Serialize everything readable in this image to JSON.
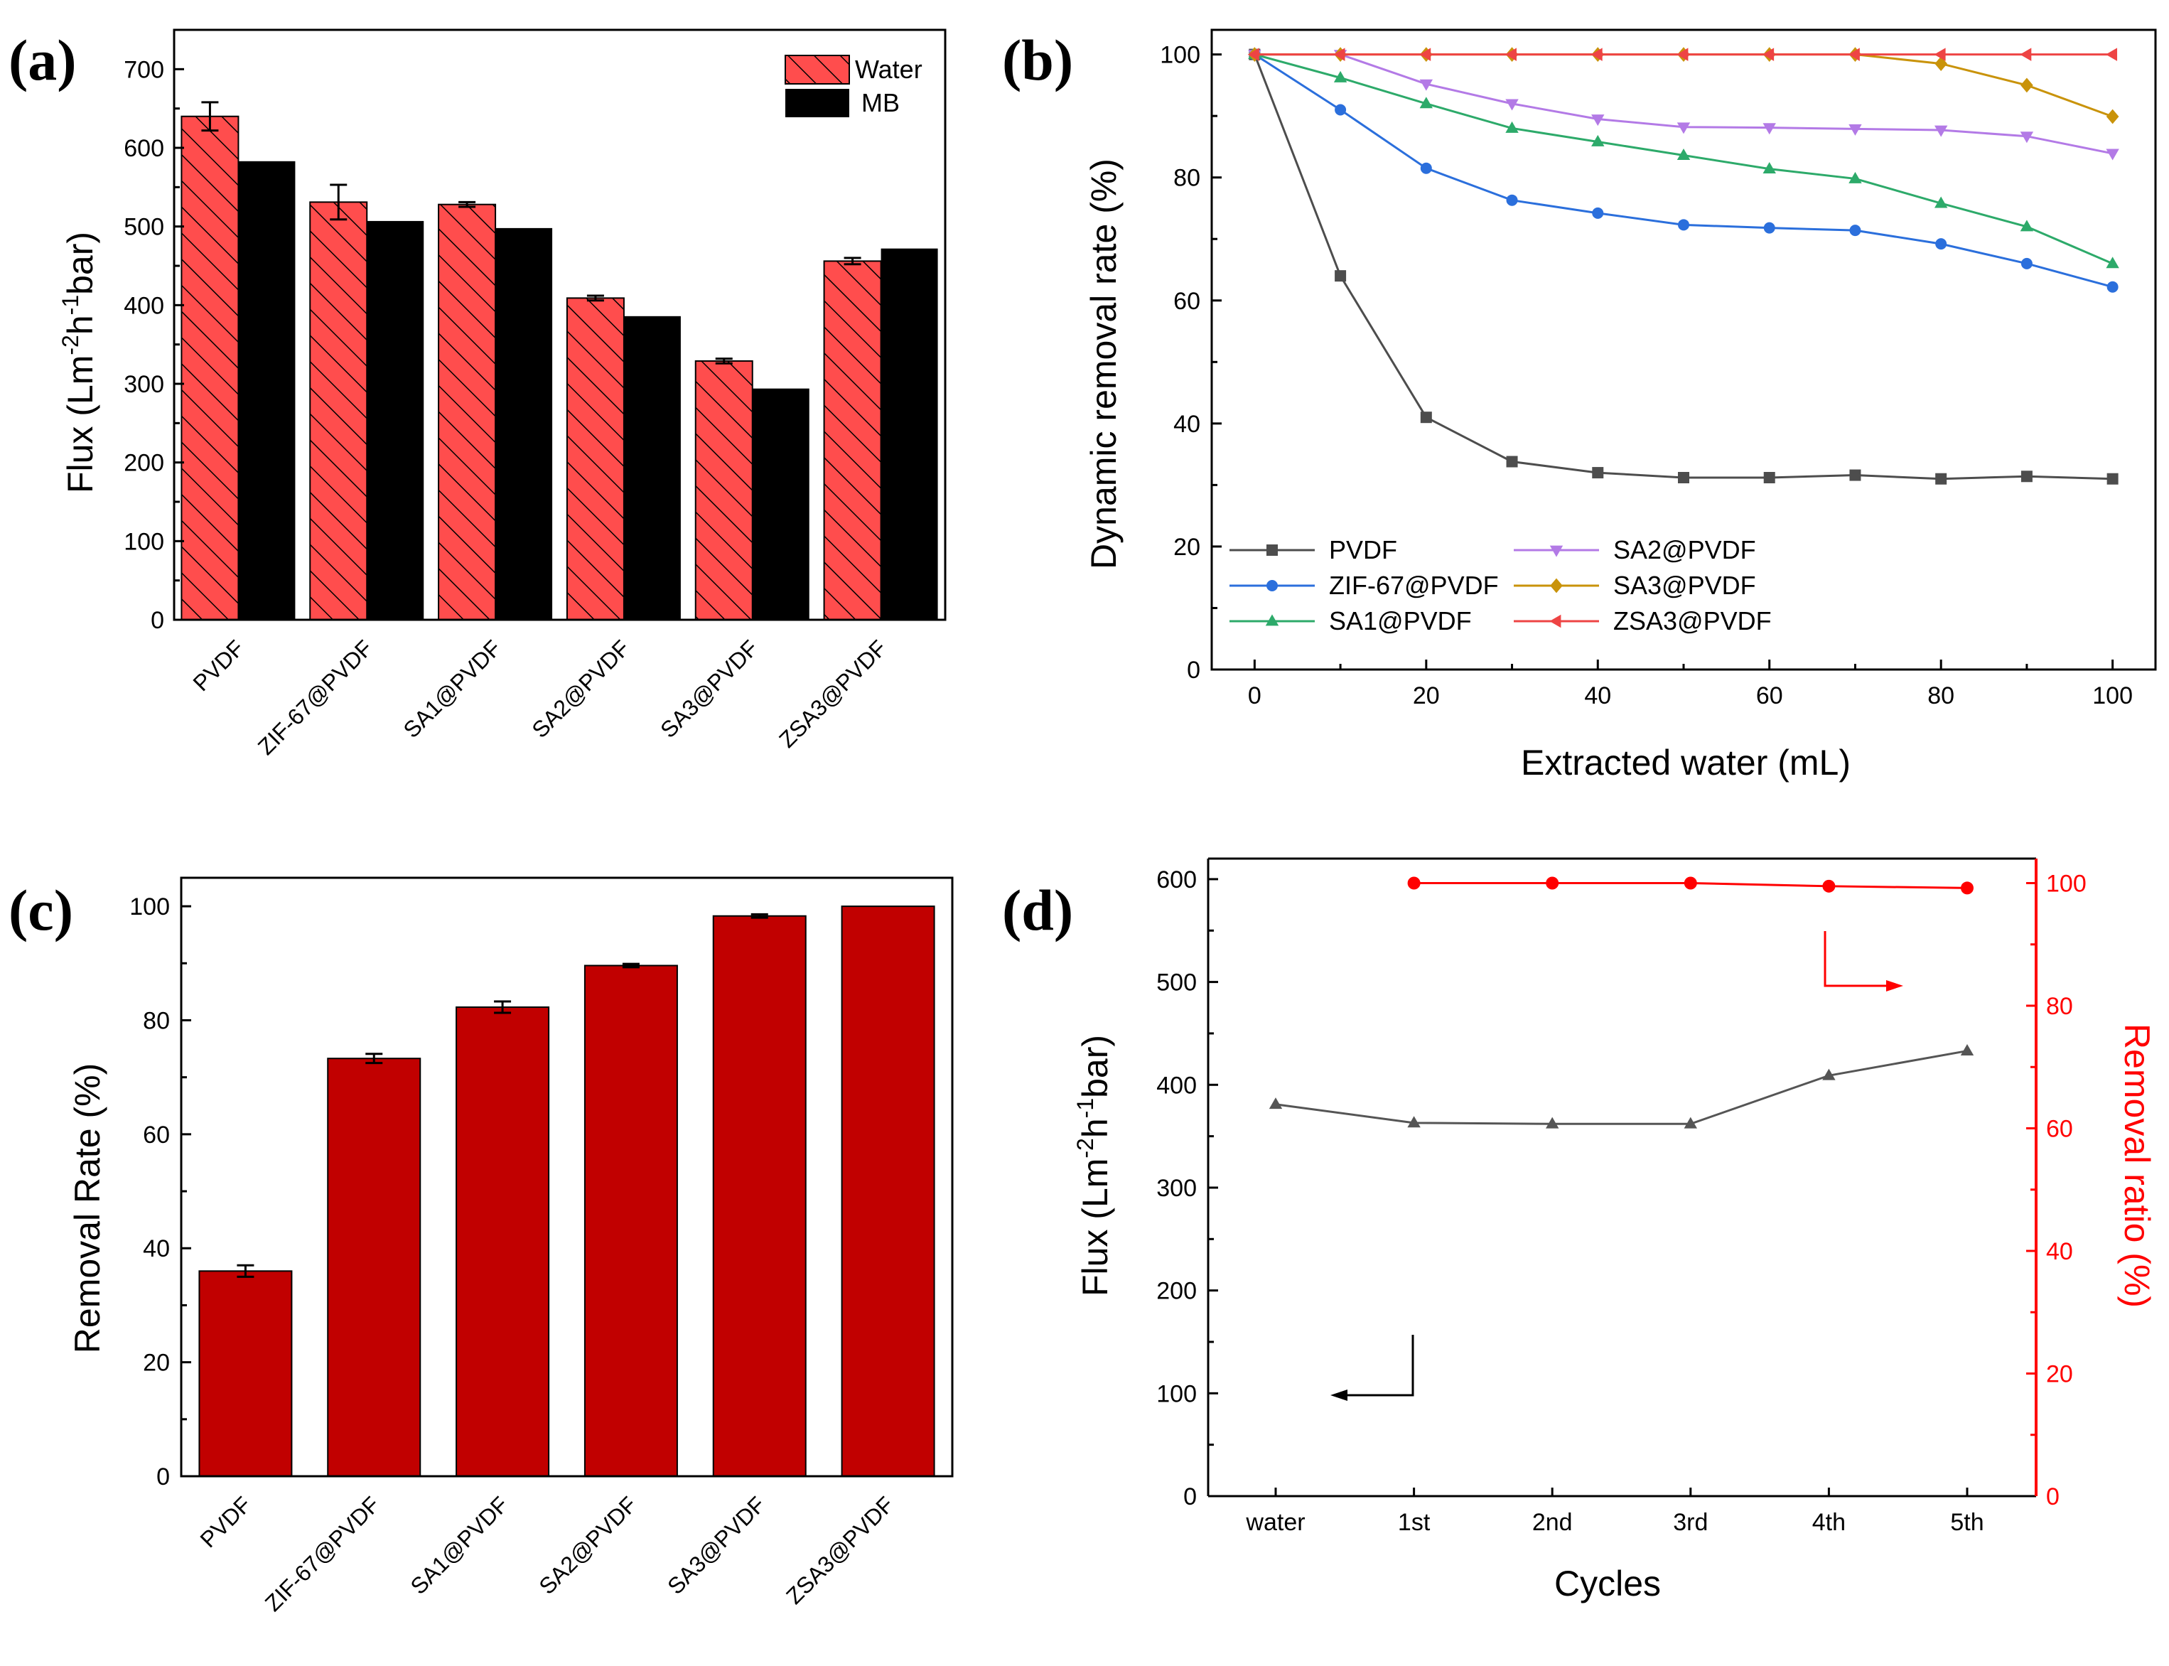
{
  "colors": {
    "red_bar": "#ff4d4d",
    "dark_red_bar": "#c10000",
    "black": "#000000",
    "pvdf": "#4d4d4d",
    "zif67": "#2b6fdc",
    "sa1": "#2daa6a",
    "sa2": "#b37ae6",
    "sa3": "#c9930a",
    "zsa3": "#ee4444",
    "removal_red": "#ff0000",
    "flux_gray": "#555555"
  },
  "chart_data": [
    {
      "id": "a",
      "panel_label": "(a)",
      "type": "bar",
      "categories": [
        "PVDF",
        "ZIF-67@PVDF",
        "SA1@PVDF",
        "SA2@PVDF",
        "SA3@PVDF",
        "ZSA3@PVDF"
      ],
      "series": [
        {
          "name": "Water",
          "values": [
            640,
            531,
            528,
            409,
            329,
            456
          ],
          "errors": [
            18,
            22,
            3,
            3,
            3,
            4
          ],
          "style": "hatched-red"
        },
        {
          "name": "MB",
          "values": [
            583,
            507,
            498,
            386,
            294,
            472
          ],
          "errors": [
            0,
            0,
            0,
            0,
            0,
            0
          ],
          "style": "black"
        }
      ],
      "ylabel": "Flux (Lm-2h-1bar)",
      "ylabel_parts": {
        "a": "Flux (Lm",
        "b": "-2",
        "c": "h",
        "d": "-1",
        "e": "bar)"
      },
      "ylim": [
        0,
        750
      ],
      "yticks": [
        "0",
        "100",
        "200",
        "300",
        "400",
        "500",
        "600",
        "700"
      ],
      "legend_position": "top-right"
    },
    {
      "id": "b",
      "panel_label": "(b)",
      "type": "line",
      "x": [
        0,
        10,
        20,
        30,
        40,
        50,
        60,
        70,
        80,
        90,
        100
      ],
      "series": [
        {
          "name": "PVDF",
          "marker": "square",
          "values": [
            100,
            64,
            41,
            33.8,
            32,
            31.2,
            31.2,
            31.6,
            31,
            31.4,
            31
          ]
        },
        {
          "name": "ZIF-67@PVDF",
          "marker": "circle",
          "values": [
            100,
            91,
            81.5,
            76.3,
            74.2,
            72.3,
            71.8,
            71.4,
            69.2,
            66,
            62.2
          ]
        },
        {
          "name": "SA1@PVDF",
          "marker": "triangle-up",
          "values": [
            100,
            96.2,
            92,
            88,
            85.8,
            83.6,
            81.4,
            79.8,
            75.8,
            72,
            66
          ]
        },
        {
          "name": "SA2@PVDF",
          "marker": "triangle-down",
          "values": [
            100,
            100,
            95.2,
            92,
            89.5,
            88.2,
            88.1,
            87.9,
            87.7,
            86.7,
            83.9
          ]
        },
        {
          "name": "SA3@PVDF",
          "marker": "diamond",
          "values": [
            100,
            100,
            100,
            100,
            100,
            100,
            100,
            100,
            98.5,
            95,
            89.9
          ]
        },
        {
          "name": "ZSA3@PVDF",
          "marker": "triangle-left",
          "values": [
            100,
            100,
            100,
            100,
            100,
            100,
            100,
            100,
            100,
            100,
            100
          ]
        }
      ],
      "xlabel": "Extracted water (mL)",
      "ylabel": "Dynamic removal rate (%)",
      "xlim": [
        -5,
        105
      ],
      "ylim": [
        0,
        104
      ],
      "xticks": [
        "0",
        "20",
        "40",
        "60",
        "80",
        "100"
      ],
      "yticks": [
        "0",
        "20",
        "40",
        "60",
        "80",
        "100"
      ],
      "legend_position": "bottom-left"
    },
    {
      "id": "c",
      "panel_label": "(c)",
      "type": "bar",
      "categories": [
        "PVDF",
        "ZIF-67@PVDF",
        "SA1@PVDF",
        "SA2@PVDF",
        "SA3@PVDF",
        "ZSA3@PVDF"
      ],
      "values": [
        36,
        73.3,
        82.3,
        89.6,
        98.3,
        100
      ],
      "errors": [
        1,
        0.8,
        1,
        0.3,
        0.3,
        0
      ],
      "ylabel": "Removal Rate (%)",
      "ylim": [
        0,
        105
      ],
      "yticks": [
        "0",
        "20",
        "40",
        "60",
        "80",
        "100"
      ]
    },
    {
      "id": "d",
      "panel_label": "(d)",
      "type": "line",
      "categories": [
        "water",
        "1st",
        "2nd",
        "3rd",
        "4th",
        "5th"
      ],
      "series": [
        {
          "name": "Flux",
          "axis": "left",
          "marker": "triangle-up",
          "values": [
            381,
            363,
            362,
            362,
            409,
            433
          ]
        },
        {
          "name": "Removal ratio",
          "axis": "right",
          "marker": "circle",
          "values": [
            null,
            100,
            100,
            100,
            99.5,
            99.2
          ]
        }
      ],
      "xlabel": "Cycles",
      "ylabel_left": "Flux (Lm-2h-1bar)",
      "ylabel_left_parts": {
        "a": "Flux (Lm",
        "b": "-2",
        "c": "h",
        "d": "-1",
        "e": "bar)"
      },
      "ylabel_right": "Removal ratio (%)",
      "ylim_left": [
        0,
        620
      ],
      "ylim_right": [
        0,
        104
      ],
      "yticks_left": [
        "0",
        "100",
        "200",
        "300",
        "400",
        "500",
        "600"
      ],
      "yticks_right": [
        "0",
        "20",
        "40",
        "60",
        "80",
        "100"
      ]
    }
  ]
}
